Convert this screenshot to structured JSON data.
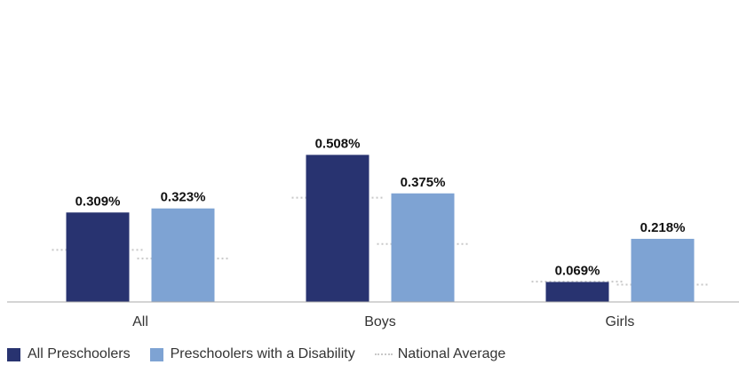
{
  "chart_data": {
    "type": "bar",
    "categories": [
      "All",
      "Boys",
      "Girls"
    ],
    "series": [
      {
        "name": "All Preschoolers",
        "values": [
          0.309,
          0.508,
          0.069
        ],
        "labels": [
          "0.309%",
          "0.508%",
          "0.069%"
        ],
        "color": "#283370"
      },
      {
        "name": "Preschoolers with a Disability",
        "values": [
          0.323,
          0.375,
          0.218
        ],
        "labels": [
          "0.323%",
          "0.375%",
          "0.218%"
        ],
        "color": "#7ea3d3"
      }
    ],
    "national_average": {
      "name": "National Average",
      "all_preschoolers": [
        0.18,
        0.36,
        0.07
      ],
      "with_disability": [
        0.15,
        0.2,
        0.06
      ],
      "color": "#c8c8c8"
    },
    "ylim": [
      0,
      0.7
    ],
    "grid": false,
    "legend_position": "bottom-left",
    "xlabel": "",
    "ylabel": ""
  },
  "legend": {
    "all_preschoolers": "All Preschoolers",
    "with_disability": "Preschoolers with a Disability",
    "national_average": "National Average"
  }
}
